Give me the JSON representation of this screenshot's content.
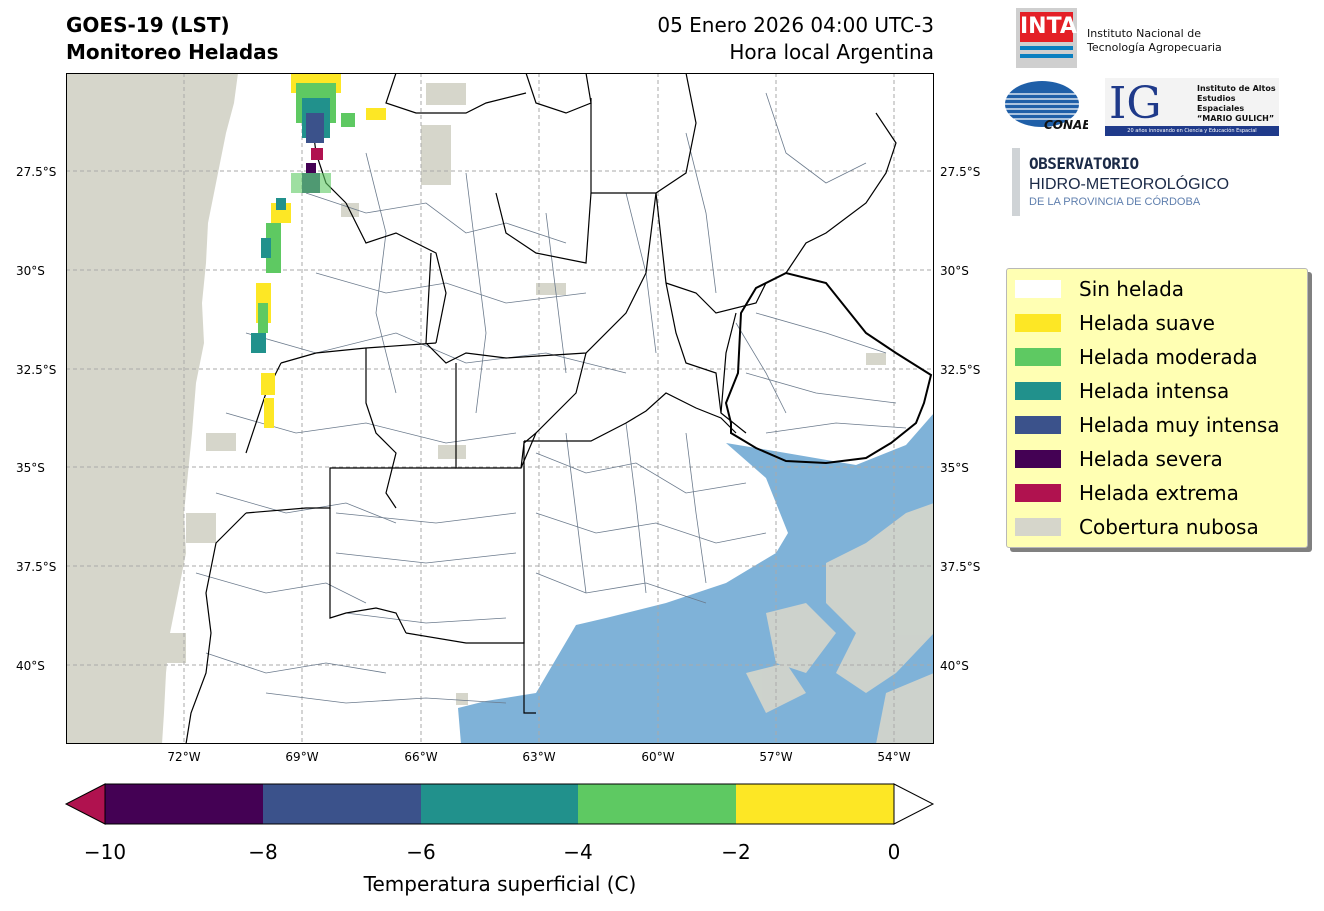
{
  "title": {
    "left_line1": "GOES-19 (LST)",
    "left_line2": "Monitoreo Heladas",
    "right_line1": "05 Enero 2026 04:00 UTC-3",
    "right_line2": "Hora local Argentina"
  },
  "map": {
    "lat_labels": [
      "27.5°S",
      "30°S",
      "32.5°S",
      "35°S",
      "37.5°S",
      "40°S"
    ],
    "lon_labels": [
      "72°W",
      "69°W",
      "66°W",
      "63°W",
      "60°W",
      "57°W",
      "54°W"
    ],
    "colors": {
      "land": "#ffffff",
      "ocean": "#7fb2d8",
      "ocean_deep": "#6ca3ce",
      "cloud": "#d8d8cc",
      "boundary": "#000000",
      "district": "#6b7a8c",
      "grid": "#aaaaaa"
    }
  },
  "legend": {
    "items": [
      {
        "label": "Sin helada",
        "color": "#ffffff"
      },
      {
        "label": "Helada suave",
        "color": "#fde725"
      },
      {
        "label": "Helada moderada",
        "color": "#5ec962"
      },
      {
        "label": "Helada intensa",
        "color": "#21918c"
      },
      {
        "label": "Helada muy intensa",
        "color": "#3b528b"
      },
      {
        "label": "Helada severa",
        "color": "#440154"
      },
      {
        "label": "Helada extrema",
        "color": "#b0124f"
      },
      {
        "label": "Cobertura nubosa",
        "color": "#d6d6cb"
      }
    ]
  },
  "colorbar": {
    "ticks": [
      "−10",
      "−8",
      "−6",
      "−4",
      "−2",
      "0"
    ],
    "label": "Temperatura superficial (C)",
    "segments": [
      "#440154",
      "#3b528b",
      "#21918c",
      "#5ec962",
      "#fde725"
    ],
    "under_color": "#b0124f",
    "over_color": "#ffffff"
  },
  "logos": {
    "inta_mark": "INTA",
    "inta_line1": "Instituto Nacional de",
    "inta_line2": "Tecnología Agropecuaria",
    "conae": "CONAE",
    "ig_mark": "IG",
    "ig_line1": "Instituto de Altos",
    "ig_line2": "Estudios Espaciales",
    "ig_line3": "“MARIO GULICH”",
    "ig_bar": "20 años innovando en Ciencia y Educación Espacial",
    "obs_line1": "OBSERVATORIO",
    "obs_line2": "HIDRO-METEOROLÓGICO",
    "obs_line3": "DE LA PROVINCIA DE CÓRDOBA"
  }
}
